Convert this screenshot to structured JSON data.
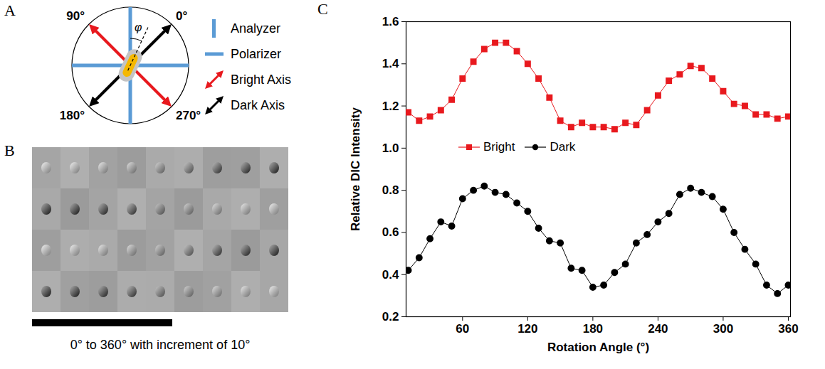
{
  "panel_labels": [
    "A",
    "B",
    "C"
  ],
  "panel_a": {
    "angle_labels": [
      "90°",
      "0°",
      "180°",
      "270°"
    ],
    "angle_symbol": "φ",
    "legend": [
      {
        "label": "Analyzer",
        "color": "#5b9bd5",
        "marker": "vertical"
      },
      {
        "label": "Polarizer",
        "color": "#5b9bd5",
        "marker": "horizontal"
      },
      {
        "label": "Bright Axis",
        "color": "#e8191e",
        "marker": "arrow"
      },
      {
        "label": "Dark Axis",
        "color": "#000000",
        "marker": "arrow"
      }
    ]
  },
  "panel_b": {
    "caption": "0° to 360° with increment of 10°"
  },
  "chart_data": {
    "type": "line",
    "x_label": "Rotation Angle (°)",
    "y_label": "Relative DIC Intensity",
    "x": [
      10,
      20,
      30,
      40,
      50,
      60,
      70,
      80,
      90,
      100,
      110,
      120,
      130,
      140,
      150,
      160,
      170,
      180,
      190,
      200,
      210,
      220,
      230,
      240,
      250,
      260,
      270,
      280,
      290,
      300,
      310,
      320,
      330,
      340,
      350,
      360
    ],
    "xlim": [
      8,
      362
    ],
    "xticks": [
      60,
      120,
      180,
      240,
      300,
      360
    ],
    "ylim": [
      0.2,
      1.6
    ],
    "yticks": [
      0.2,
      0.4,
      0.6,
      0.8,
      {
        "value": 1,
        "label": "1.0"
      },
      1.2,
      1.4,
      1.6
    ],
    "legend": "center",
    "series": [
      {
        "name": "Bright",
        "color": "#e8191e",
        "marker": "square",
        "values": [
          1.17,
          1.13,
          1.15,
          1.18,
          1.23,
          1.33,
          1.41,
          1.47,
          1.5,
          1.5,
          1.46,
          1.4,
          1.33,
          1.24,
          1.13,
          1.1,
          1.12,
          1.1,
          1.1,
          1.09,
          1.12,
          1.11,
          1.18,
          1.25,
          1.32,
          1.35,
          1.39,
          1.38,
          1.33,
          1.27,
          1.21,
          1.2,
          1.16,
          1.16,
          1.14,
          1.15
        ]
      },
      {
        "name": "Dark",
        "color": "#000000",
        "marker": "circle",
        "values": [
          0.42,
          0.48,
          0.57,
          0.65,
          0.63,
          0.76,
          0.8,
          0.82,
          0.79,
          0.78,
          0.74,
          0.7,
          0.62,
          0.56,
          0.55,
          0.43,
          0.42,
          0.34,
          0.35,
          0.41,
          0.45,
          0.55,
          0.59,
          0.65,
          0.69,
          0.78,
          0.81,
          0.79,
          0.77,
          0.71,
          0.6,
          0.52,
          0.45,
          0.35,
          0.31,
          0.35
        ]
      }
    ]
  }
}
